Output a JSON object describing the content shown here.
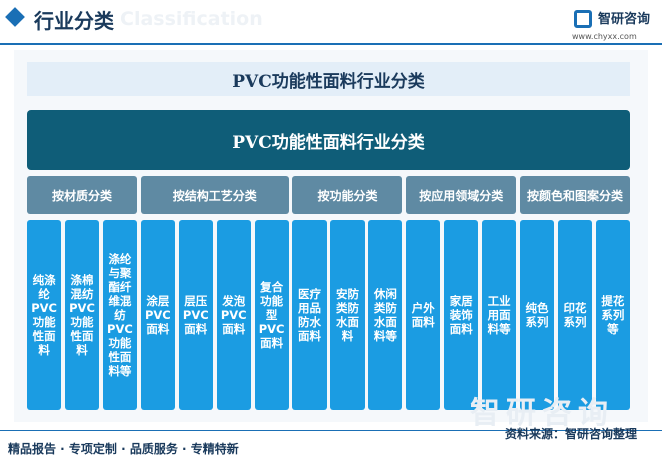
{
  "header": {
    "title": "行业分类",
    "subtitle": "Classification",
    "logo": "智研咨询",
    "url": "www.chyxx.com"
  },
  "panel_title": "PVC功能性面料行业分类",
  "root": "PVC功能性面料行业分类",
  "groups": [
    {
      "label": "按材质分类",
      "items": [
        "纯涤纶PVC功能性面料",
        "涤棉混纺PVC功能性面料",
        "涤纶与聚酯纤维混纺PVC功能性面料等"
      ]
    },
    {
      "label": "按结构工艺分类",
      "items": [
        "涂层PVC面料",
        "层压PVC面料",
        "发泡PVC面料",
        "复合功能型PVC面料"
      ]
    },
    {
      "label": "按功能分类",
      "items": [
        "医疗用品防水面料",
        "安防类防水面料",
        "休闲类防水面料等"
      ]
    },
    {
      "label": "按应用领域分类",
      "items": [
        "户外面料",
        "家居装饰面料",
        "工业用面料等"
      ]
    },
    {
      "label": "按颜色和图案分类",
      "items": [
        "纯色系列",
        "印花系列",
        "提花系列等"
      ]
    }
  ],
  "footer": {
    "tagline": "精品报告 · 专项定制 · 品质服务 · 专精特新",
    "source": "资料来源：智研咨询整理"
  }
}
